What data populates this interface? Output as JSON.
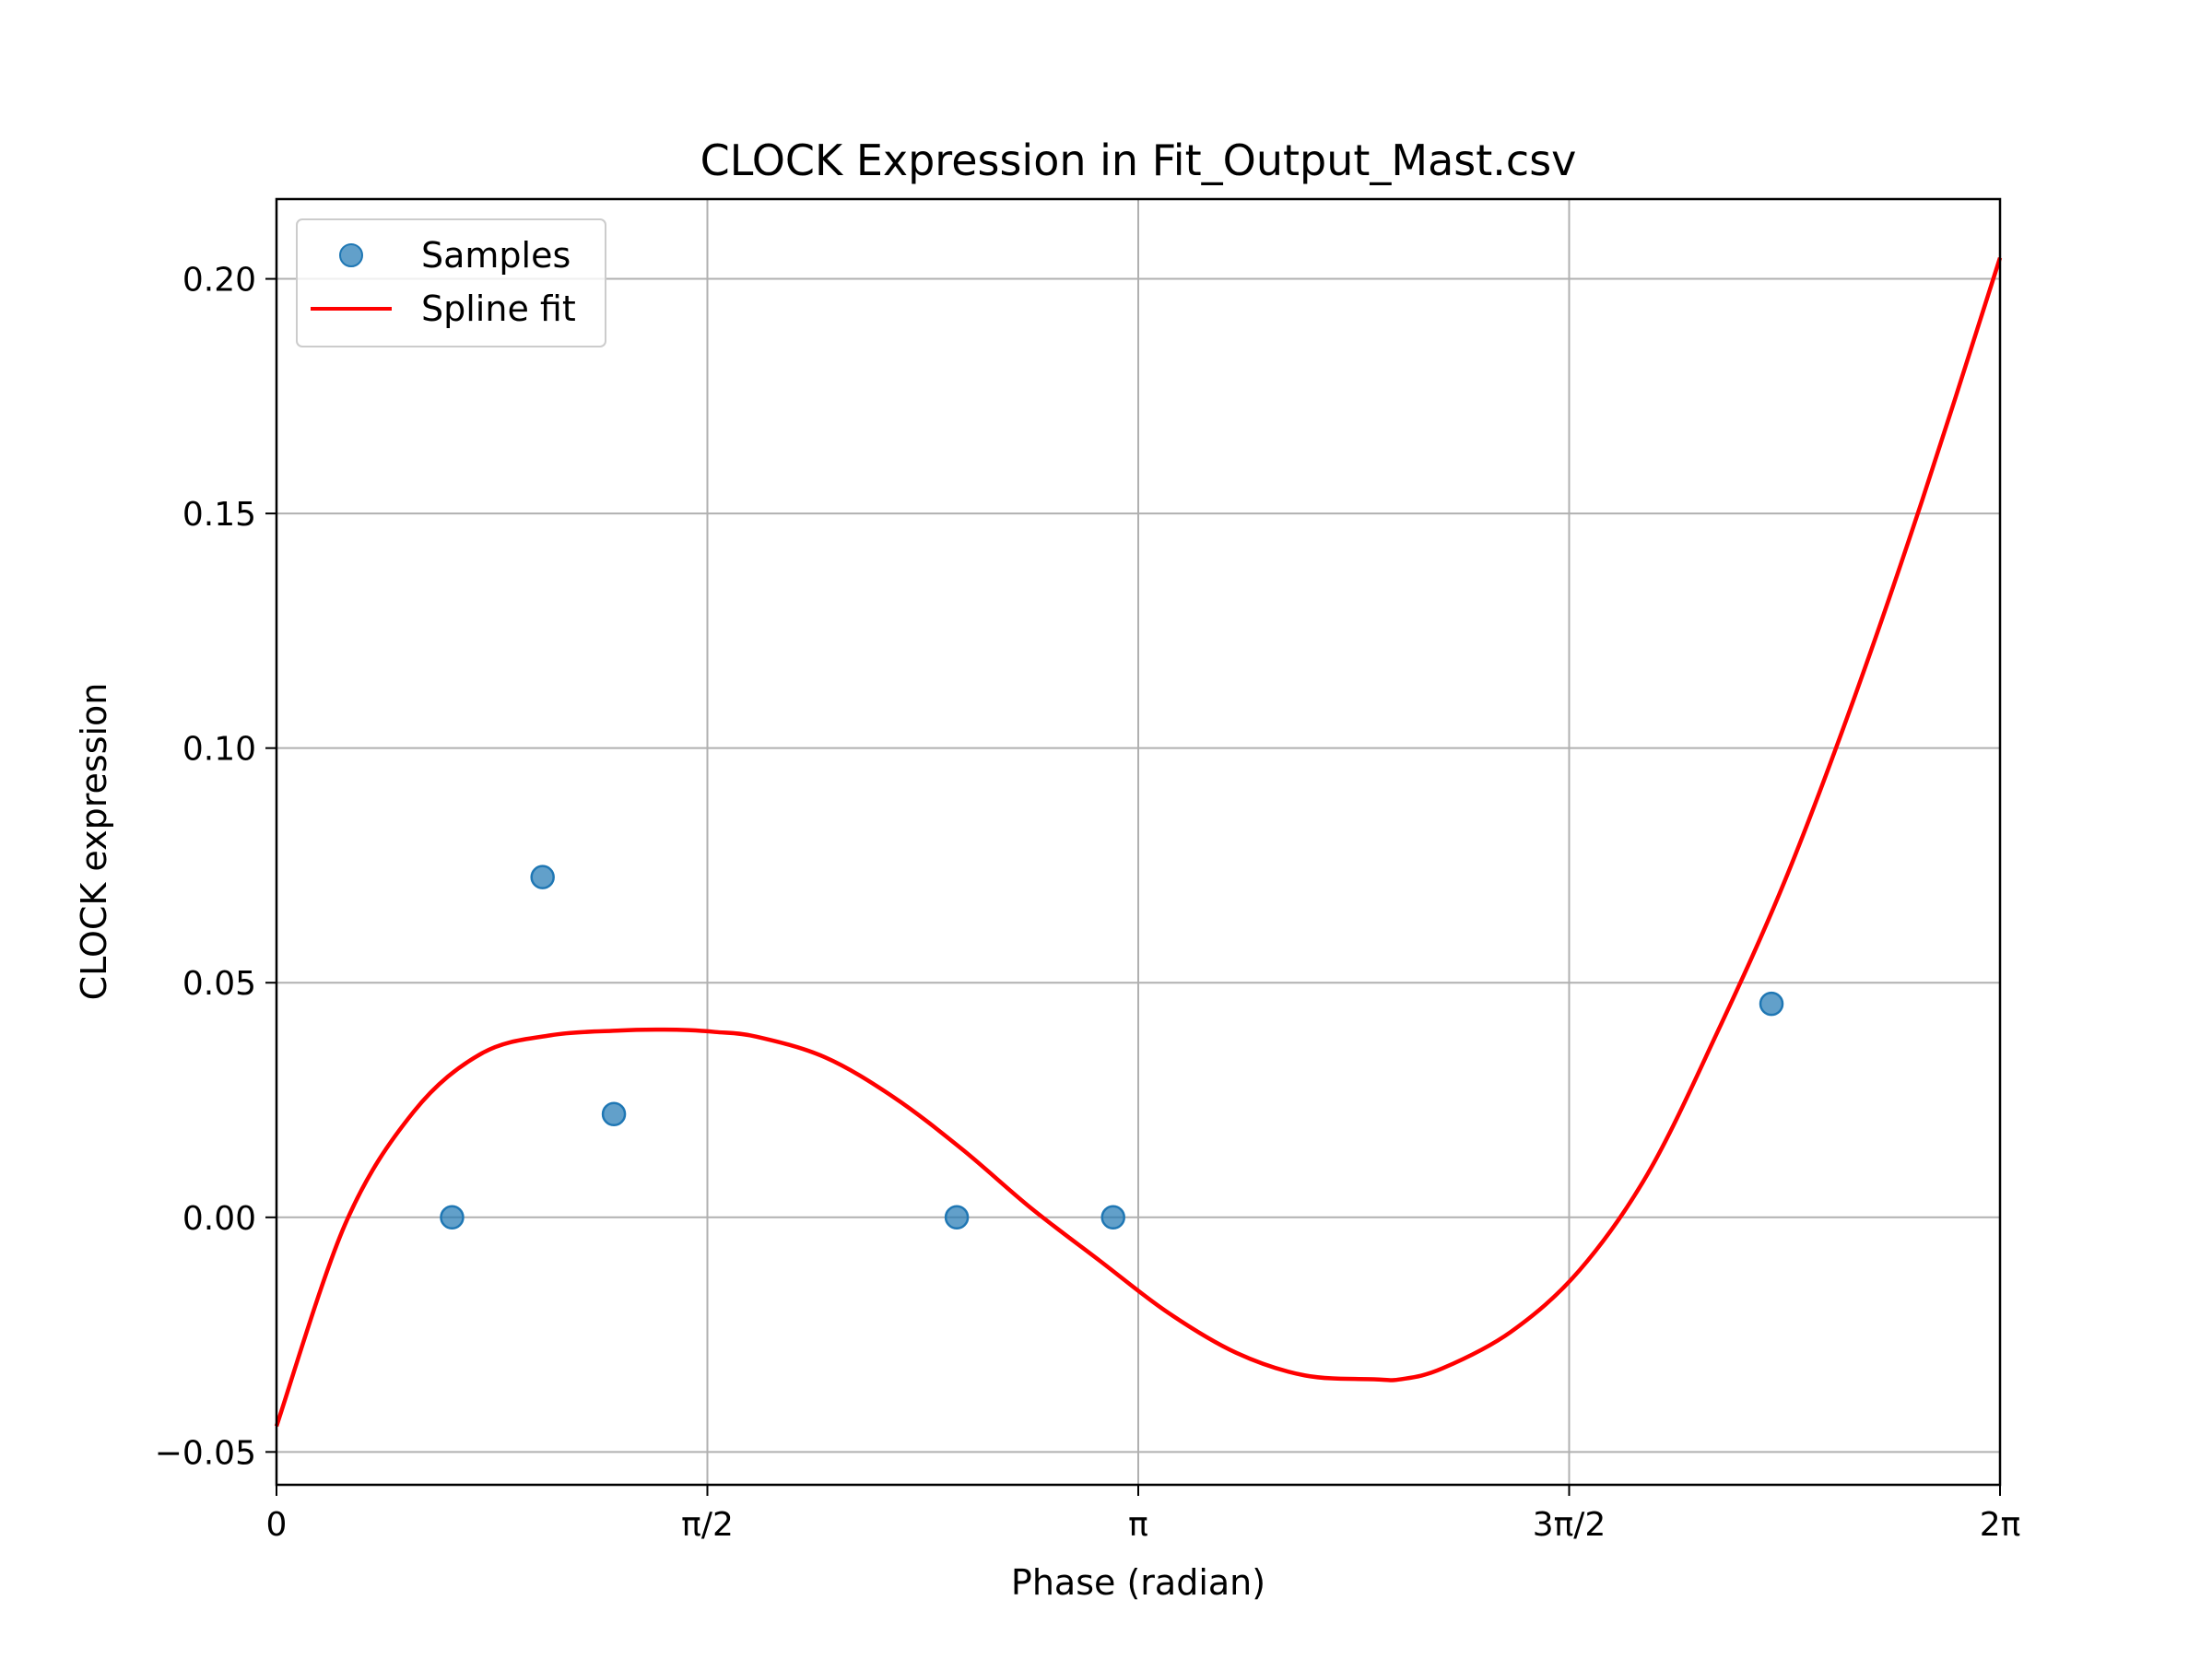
{
  "chart_data": {
    "type": "scatter",
    "title": "CLOCK Expression in Fit_Output_Mast.csv",
    "xlabel": "Phase (radian)",
    "ylabel": "CLOCK expression",
    "xlim": [
      0,
      6.2832
    ],
    "ylim": [
      -0.057,
      0.217
    ],
    "x_ticks": [
      {
        "value": 0,
        "label": "0"
      },
      {
        "value": 1.5708,
        "label": "π/2"
      },
      {
        "value": 3.1416,
        "label": "π"
      },
      {
        "value": 4.7124,
        "label": "3π/2"
      },
      {
        "value": 6.2832,
        "label": "2π"
      }
    ],
    "y_ticks": [
      {
        "value": -0.05,
        "label": "−0.05"
      },
      {
        "value": 0.0,
        "label": "0.00"
      },
      {
        "value": 0.05,
        "label": "0.05"
      },
      {
        "value": 0.1,
        "label": "0.10"
      },
      {
        "value": 0.15,
        "label": "0.15"
      },
      {
        "value": 0.2,
        "label": "0.20"
      }
    ],
    "grid": true,
    "legend_position": "top-left",
    "series": [
      {
        "name": "Samples",
        "kind": "scatter",
        "color": "#1f77b4",
        "x": [
          0.64,
          0.97,
          1.23,
          2.48,
          3.05,
          5.45
        ],
        "y": [
          0.0,
          0.0725,
          0.022,
          0.0,
          0.0,
          0.0455
        ]
      },
      {
        "name": "Spline fit",
        "kind": "line",
        "color": "#ff0000",
        "x": [
          0.0,
          0.25,
          0.5,
          0.75,
          1.0,
          1.25,
          1.4,
          1.5,
          1.6,
          1.75,
          2.0,
          2.25,
          2.5,
          2.75,
          3.0,
          3.25,
          3.5,
          3.75,
          4.0,
          4.1,
          4.25,
          4.5,
          4.75,
          5.0,
          5.25,
          5.5,
          5.75,
          6.0,
          6.2832
        ],
        "y": [
          -0.0445,
          -0.0015,
          0.0225,
          0.035,
          0.0388,
          0.0398,
          0.04,
          0.0399,
          0.0395,
          0.0385,
          0.0341,
          0.0256,
          0.0145,
          0.002,
          -0.0092,
          -0.0203,
          -0.0289,
          -0.0337,
          -0.0345,
          -0.0345,
          -0.0322,
          -0.0244,
          -0.0113,
          0.0094,
          0.0391,
          0.0719,
          0.1104,
          0.1529,
          0.2045
        ]
      }
    ]
  }
}
